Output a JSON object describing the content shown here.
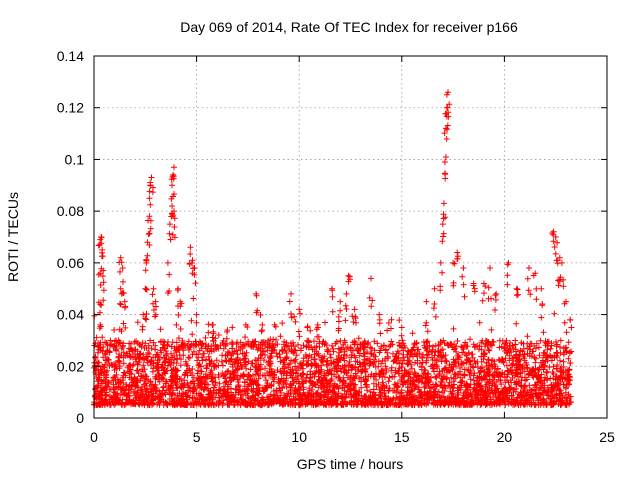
{
  "chart_data": {
    "type": "scatter",
    "title": "Day 069 of 2014, Rate Of TEC Index for receiver p166",
    "xlabel": "GPS time / hours",
    "ylabel": "ROTI / TECUs",
    "xlim": [
      0,
      25
    ],
    "ylim": [
      0,
      0.14
    ],
    "xticks": [
      0,
      5,
      10,
      15,
      20,
      25
    ],
    "xtick_labels": [
      "0",
      "5",
      "10",
      "15",
      "20",
      "25"
    ],
    "yticks": [
      0,
      0.02,
      0.04,
      0.06,
      0.08,
      0.1,
      0.12,
      0.14
    ],
    "ytick_labels": [
      "0",
      "0.02",
      "0.04",
      "0.06",
      "0.08",
      "0.1",
      "0.12",
      "0.14"
    ],
    "grid": true,
    "marker": "+",
    "color": "#ff0000",
    "data_range_hours": [
      0,
      23.25
    ],
    "baseline_band": [
      0.005,
      0.03
    ],
    "series": [
      {
        "name": "p166 ROTI",
        "points": [
          [
            0.2,
            0.029
          ],
          [
            0.3,
            0.036
          ],
          [
            0.3,
            0.044
          ],
          [
            0.3,
            0.056
          ],
          [
            0.3,
            0.069
          ],
          [
            0.35,
            0.07
          ],
          [
            0.4,
            0.065
          ],
          [
            0.45,
            0.057
          ],
          [
            1.2,
            0.03
          ],
          [
            1.3,
            0.05
          ],
          [
            1.3,
            0.062
          ],
          [
            1.4,
            0.058
          ],
          [
            1.5,
            0.045
          ],
          [
            2.4,
            0.04
          ],
          [
            2.5,
            0.05
          ],
          [
            2.55,
            0.06
          ],
          [
            2.6,
            0.068
          ],
          [
            2.7,
            0.078
          ],
          [
            2.7,
            0.085
          ],
          [
            2.75,
            0.09
          ],
          [
            2.8,
            0.093
          ],
          [
            2.9,
            0.05
          ],
          [
            3.0,
            0.045
          ],
          [
            3.6,
            0.06
          ],
          [
            3.7,
            0.075
          ],
          [
            3.8,
            0.082
          ],
          [
            3.8,
            0.09
          ],
          [
            3.85,
            0.094
          ],
          [
            3.9,
            0.097
          ],
          [
            3.9,
            0.08
          ],
          [
            4.1,
            0.05
          ],
          [
            4.2,
            0.045
          ],
          [
            4.7,
            0.066
          ],
          [
            4.8,
            0.061
          ],
          [
            4.9,
            0.058
          ],
          [
            5.0,
            0.04
          ],
          [
            5.8,
            0.036
          ],
          [
            6.5,
            0.034
          ],
          [
            7.4,
            0.036
          ],
          [
            7.9,
            0.048
          ],
          [
            8.2,
            0.036
          ],
          [
            8.8,
            0.036
          ],
          [
            9.6,
            0.048
          ],
          [
            10.0,
            0.042
          ],
          [
            10.4,
            0.035
          ],
          [
            10.9,
            0.036
          ],
          [
            11.6,
            0.05
          ],
          [
            12.0,
            0.045
          ],
          [
            12.3,
            0.048
          ],
          [
            12.4,
            0.055
          ],
          [
            12.7,
            0.042
          ],
          [
            13.5,
            0.054
          ],
          [
            13.9,
            0.04
          ],
          [
            14.5,
            0.038
          ],
          [
            15.0,
            0.035
          ],
          [
            16.2,
            0.045
          ],
          [
            16.6,
            0.05
          ],
          [
            16.9,
            0.06
          ],
          [
            17.0,
            0.075
          ],
          [
            17.05,
            0.083
          ],
          [
            17.1,
            0.099
          ],
          [
            17.15,
            0.112
          ],
          [
            17.2,
            0.12
          ],
          [
            17.2,
            0.125
          ],
          [
            17.25,
            0.126
          ],
          [
            17.5,
            0.06
          ],
          [
            17.7,
            0.064
          ],
          [
            18.0,
            0.058
          ],
          [
            18.5,
            0.052
          ],
          [
            19.0,
            0.052
          ],
          [
            19.3,
            0.058
          ],
          [
            19.6,
            0.048
          ],
          [
            20.2,
            0.06
          ],
          [
            20.6,
            0.05
          ],
          [
            21.2,
            0.058
          ],
          [
            21.5,
            0.056
          ],
          [
            21.8,
            0.05
          ],
          [
            22.4,
            0.072
          ],
          [
            22.5,
            0.07
          ],
          [
            22.6,
            0.061
          ],
          [
            22.7,
            0.062
          ],
          [
            22.8,
            0.06
          ],
          [
            23.0,
            0.045
          ],
          [
            23.2,
            0.038
          ]
        ]
      }
    ]
  }
}
